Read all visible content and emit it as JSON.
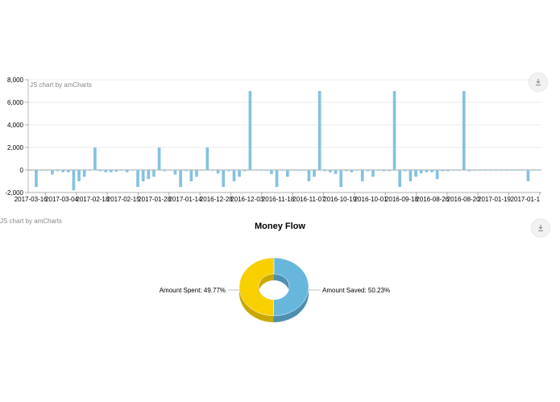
{
  "chart_data": [
    {
      "type": "bar",
      "credit": "JS chart by amCharts",
      "ylim": [
        -2000,
        8000
      ],
      "y_ticks": [
        "8,000",
        "6,000",
        "4,000",
        "2,000",
        "0",
        "-2,000"
      ],
      "y_tick_values": [
        8000,
        6000,
        4000,
        2000,
        0,
        -2000
      ],
      "x_tick_labels": [
        "2017-03-16",
        "2017-03-04",
        "2017-02-18",
        "2017-02-15",
        "2017-01-28",
        "2017-01-14",
        "2016-12-28",
        "2016-12-03",
        "2016-11-18",
        "2016-11-07",
        "2016-10-19",
        "2016-10-01",
        "2016-09-18",
        "2016-08-26",
        "2016-08-20",
        "2017-01-19",
        "2017-01-1"
      ],
      "color": "#85c1e0",
      "values": [
        -50,
        -1500,
        -50,
        -50,
        -400,
        -100,
        -200,
        -200,
        -1800,
        -1000,
        -600,
        -50,
        2000,
        -100,
        -200,
        -200,
        -150,
        -50,
        -200,
        -50,
        -1500,
        -1000,
        -800,
        -600,
        2000,
        -100,
        -50,
        -400,
        -1500,
        -100,
        -1000,
        -600,
        -50,
        2000,
        -50,
        -300,
        -1500,
        -100,
        -1000,
        -600,
        -100,
        7000,
        -50,
        -50,
        -50,
        -350,
        -1500,
        -50,
        -600,
        -50,
        -50,
        -50,
        -1000,
        -600,
        7000,
        -100,
        -200,
        -350,
        -1500,
        -100,
        -200,
        -50,
        -1000,
        -100,
        -600,
        -50,
        -100,
        -100,
        7000,
        -1500,
        -100,
        -1000,
        -600,
        -300,
        -200,
        -200,
        -800,
        -100,
        -100,
        -50,
        -50,
        7000,
        -100,
        -50,
        -50,
        -50,
        -50,
        -50,
        -50,
        -50,
        -50,
        -50,
        -50,
        -1000,
        -50,
        -50
      ]
    },
    {
      "type": "pie",
      "title": "Money Flow",
      "credit": "JS chart by amCharts",
      "slices": [
        {
          "label": "Amount Spent",
          "percent": 49.77,
          "text": "Amount Spent: 49.77%",
          "color": "#f8d000",
          "shade": "#c9a900"
        },
        {
          "label": "Amount Saved",
          "percent": 50.23,
          "text": "Amount Saved: 50.23%",
          "color": "#67b7dc",
          "shade": "#4e8fb0"
        }
      ]
    }
  ]
}
